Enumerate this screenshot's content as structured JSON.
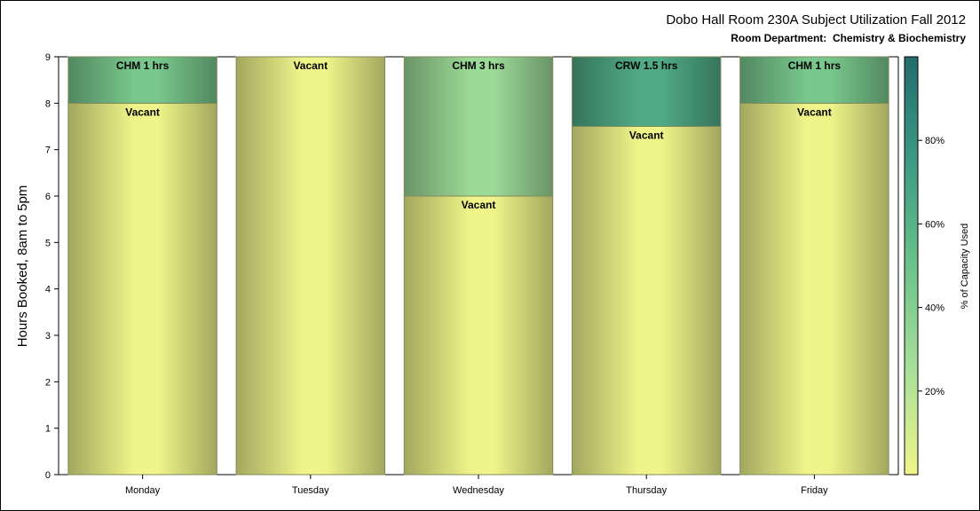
{
  "chart_data": {
    "type": "bar",
    "stacked": true,
    "title": "Dobo Hall Room 230A Subject Utilization Fall 2012",
    "subtitle": "Room Department:  Chemistry & Biochemistry",
    "ylabel": "Hours Booked, 8am to 5pm",
    "xlabel": "",
    "ylim": [
      0,
      9
    ],
    "yticks": [
      "0",
      "1",
      "2",
      "3",
      "4",
      "5",
      "6",
      "7",
      "8",
      "9"
    ],
    "categories": [
      "Monday",
      "Tuesday",
      "Wednesday",
      "Thursday",
      "Friday"
    ],
    "bars": [
      {
        "day": "Monday",
        "segments": [
          {
            "label": "Vacant",
            "hours": 8,
            "pct": 0
          },
          {
            "label": "CHM 1 hrs",
            "hours": 1,
            "pct": 45
          }
        ]
      },
      {
        "day": "Tuesday",
        "segments": [
          {
            "label": "Vacant",
            "hours": 9,
            "pct": 0
          }
        ]
      },
      {
        "day": "Wednesday",
        "segments": [
          {
            "label": "Vacant",
            "hours": 6,
            "pct": 0
          },
          {
            "label": "CHM 3 hrs",
            "hours": 3,
            "pct": 30
          }
        ]
      },
      {
        "day": "Thursday",
        "segments": [
          {
            "label": "Vacant",
            "hours": 7.5,
            "pct": 0
          },
          {
            "label": "CRW 1.5 hrs",
            "hours": 1.5,
            "pct": 65
          }
        ]
      },
      {
        "day": "Friday",
        "segments": [
          {
            "label": "Vacant",
            "hours": 8,
            "pct": 0
          },
          {
            "label": "CHM 1 hrs",
            "hours": 1,
            "pct": 45
          }
        ]
      }
    ],
    "colorbar": {
      "title": "% of Capacity Used",
      "range": [
        0,
        100
      ],
      "ticks": [
        "20%",
        "40%",
        "60%",
        "80%"
      ],
      "tick_values": [
        20,
        40,
        60,
        80
      ],
      "colors": [
        "#f0f58a",
        "#a8e09a",
        "#6cc28a",
        "#3d9a84",
        "#236b6e"
      ]
    },
    "grid": false,
    "legend": "right"
  }
}
